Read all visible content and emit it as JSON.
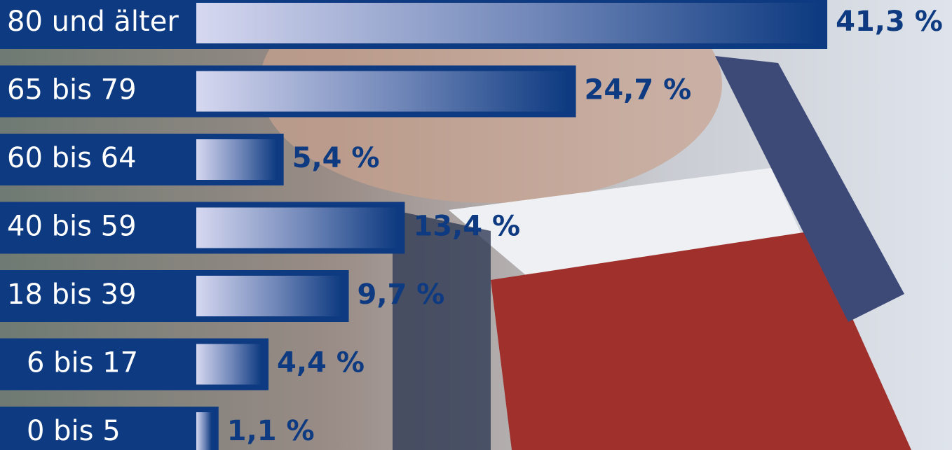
{
  "chart_data": {
    "type": "bar",
    "orientation": "horizontal",
    "categories": [
      "80 und älter",
      "65 bis 79",
      "60 bis 64",
      "40 bis 59",
      "18 bis 39",
      "6 bis 17",
      "0 bis 5"
    ],
    "values": [
      41.3,
      24.7,
      5.4,
      13.4,
      9.7,
      4.4,
      1.1
    ],
    "value_labels": [
      "41,3 %",
      "24,7 %",
      "5,4 %",
      "13,4 %",
      "9,7 %",
      "4,4 %",
      "1,1 %"
    ],
    "color": "#0d3a80"
  }
}
